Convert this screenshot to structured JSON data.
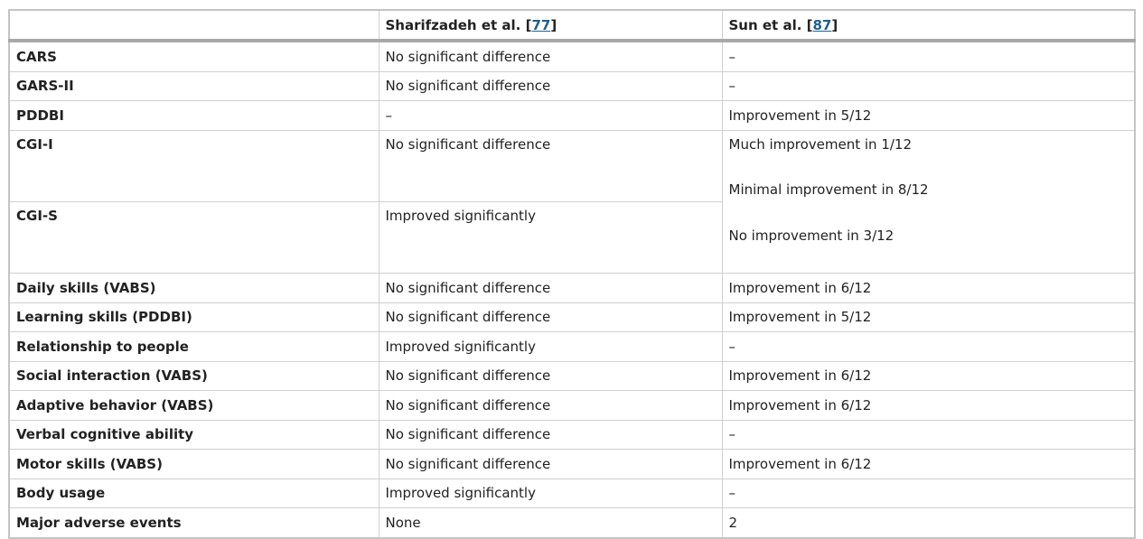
{
  "table": {
    "header": [
      [],
      [
        "Sharifzadeh et al. [",
        "77",
        "]"
      ],
      [
        "Sun et al. [",
        "87",
        "]"
      ]
    ],
    "rows": [
      [
        "CARS",
        "No significant difference",
        "–"
      ],
      [
        "GARS-II",
        "No significant difference",
        "–"
      ],
      [
        "PDDBI",
        "–",
        "Improvement in 5/12"
      ],
      [
        "CGI-I",
        "No significant difference",
        [
          "Much improvement in 1/12",
          "Minimal improvement in 8/12",
          "No improvement in 3/12"
        ]
      ],
      [
        "CGI-S",
        "Improved significantly"
      ],
      [
        "Daily skills (VABS)",
        "No significant difference",
        "Improvement in 6/12"
      ],
      [
        "Learning skills (PDDBI)",
        "No significant difference",
        "Improvement in 5/12"
      ],
      [
        "Relationship to people",
        "Improved significantly",
        "–"
      ],
      [
        "Social interaction (VABS)",
        "No significant difference",
        "Improvement in 6/12"
      ],
      [
        "Adaptive behavior (VABS)",
        "No significant difference",
        "Improvement in 6/12"
      ],
      [
        "Verbal cognitive ability",
        "No significant difference",
        "–"
      ],
      [
        "Motor skills (VABS)",
        "No significant difference",
        "Improvement in 6/12"
      ],
      [
        "Body usage",
        "Improved significantly",
        "–"
      ],
      [
        "Major adverse events",
        "None",
        "2"
      ]
    ]
  }
}
